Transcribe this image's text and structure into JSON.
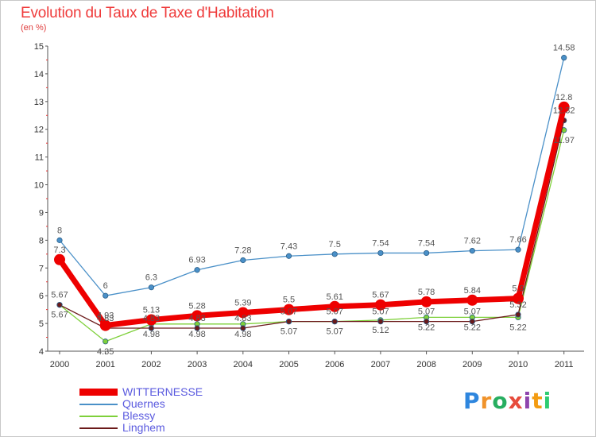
{
  "title": "Evolution du Taux de Taxe d'Habitation",
  "subtitle": "(en %)",
  "logo": {
    "text": "Proxiti",
    "letters": [
      "P",
      "r",
      "o",
      "x",
      "i",
      "t",
      "i"
    ],
    "colors": [
      "#2e86de",
      "#f0932b",
      "#27ae60",
      "#e74c3c",
      "#8e44ad",
      "#f39c12",
      "#2ecc71"
    ]
  },
  "chart_data": {
    "type": "line",
    "x": [
      "2000",
      "2001",
      "2002",
      "2003",
      "2004",
      "2005",
      "2006",
      "2007",
      "2008",
      "2009",
      "2010",
      "2011"
    ],
    "ylim": [
      4,
      15
    ],
    "yticks": [
      "4",
      "5",
      "6",
      "7",
      "8",
      "9",
      "10",
      "11",
      "12",
      "13",
      "14",
      "15"
    ],
    "grid": false,
    "legend_position": "bottom-left",
    "series": [
      {
        "name": "WITTERNESSE",
        "color": "#ee0000",
        "values": [
          7.3,
          4.93,
          5.13,
          5.28,
          5.39,
          5.5,
          5.61,
          5.67,
          5.78,
          5.84,
          5.9,
          12.8
        ],
        "labels": [
          "7.3",
          "4.93",
          "5.13",
          "5.28",
          "5.39",
          "5.5",
          "5.61",
          "5.67",
          "5.78",
          "5.84",
          "5.9",
          "12.8"
        ]
      },
      {
        "name": "Quernes",
        "color": "#4a90c8",
        "values": [
          8,
          6,
          6.3,
          6.93,
          7.28,
          7.43,
          7.5,
          7.54,
          7.54,
          7.62,
          7.66,
          14.58
        ],
        "labels": [
          "8",
          "6",
          "6.3",
          "6.93",
          "7.28",
          "7.43",
          "7.5",
          "7.54",
          "7.54",
          "7.62",
          "7.66",
          "14.58"
        ]
      },
      {
        "name": "Blessy",
        "color": "#7ed03a",
        "values": [
          5.67,
          4.35,
          4.98,
          4.98,
          4.98,
          5.07,
          5.07,
          5.12,
          5.22,
          5.22,
          5.22,
          11.97
        ],
        "labels": [
          "5.67",
          "4.35",
          "4.98",
          "4.98",
          "4.98",
          "5.07",
          "5.07",
          "5.12",
          "5.22",
          "5.22",
          "5.22",
          "11.97"
        ]
      },
      {
        "name": "Linghem",
        "color": "#6b1a1a",
        "values": [
          5.67,
          4.83,
          4.83,
          4.83,
          4.83,
          5.07,
          5.07,
          5.07,
          5.07,
          5.07,
          5.32,
          12.32
        ],
        "labels": [
          "5.67",
          "4.83",
          "4.83",
          "4.83",
          "4.83",
          "5.07",
          "5.07",
          "5.07",
          "5.07",
          "5.07",
          "5.32",
          "12.32"
        ]
      }
    ]
  }
}
